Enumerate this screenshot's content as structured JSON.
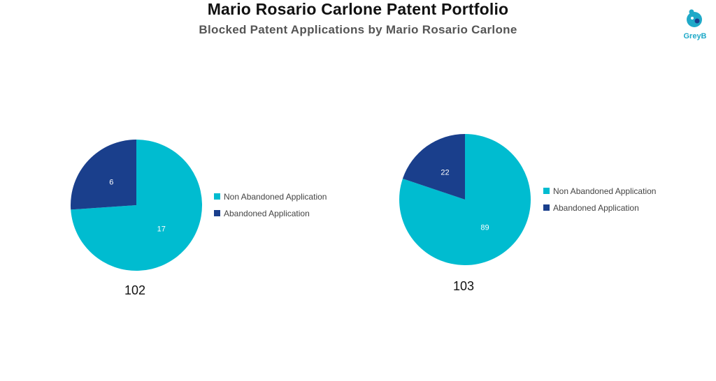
{
  "header": {
    "title": "Mario Rosario Carlone Patent Portfolio",
    "subtitle": "Blocked Patent Applications by Mario Rosario Carlone",
    "logo_text": "GreyB"
  },
  "colors": {
    "non_abandoned": "#00bcd0",
    "abandoned": "#1a3f8c"
  },
  "chart_data": [
    {
      "type": "pie",
      "caption": "102",
      "series": [
        {
          "name": "Non Abandoned Application",
          "value": 17
        },
        {
          "name": "Abandoned Application",
          "value": 6
        }
      ]
    },
    {
      "type": "pie",
      "caption": "103",
      "series": [
        {
          "name": "Non Abandoned Application",
          "value": 89
        },
        {
          "name": "Abandoned Application",
          "value": 22
        }
      ]
    }
  ]
}
